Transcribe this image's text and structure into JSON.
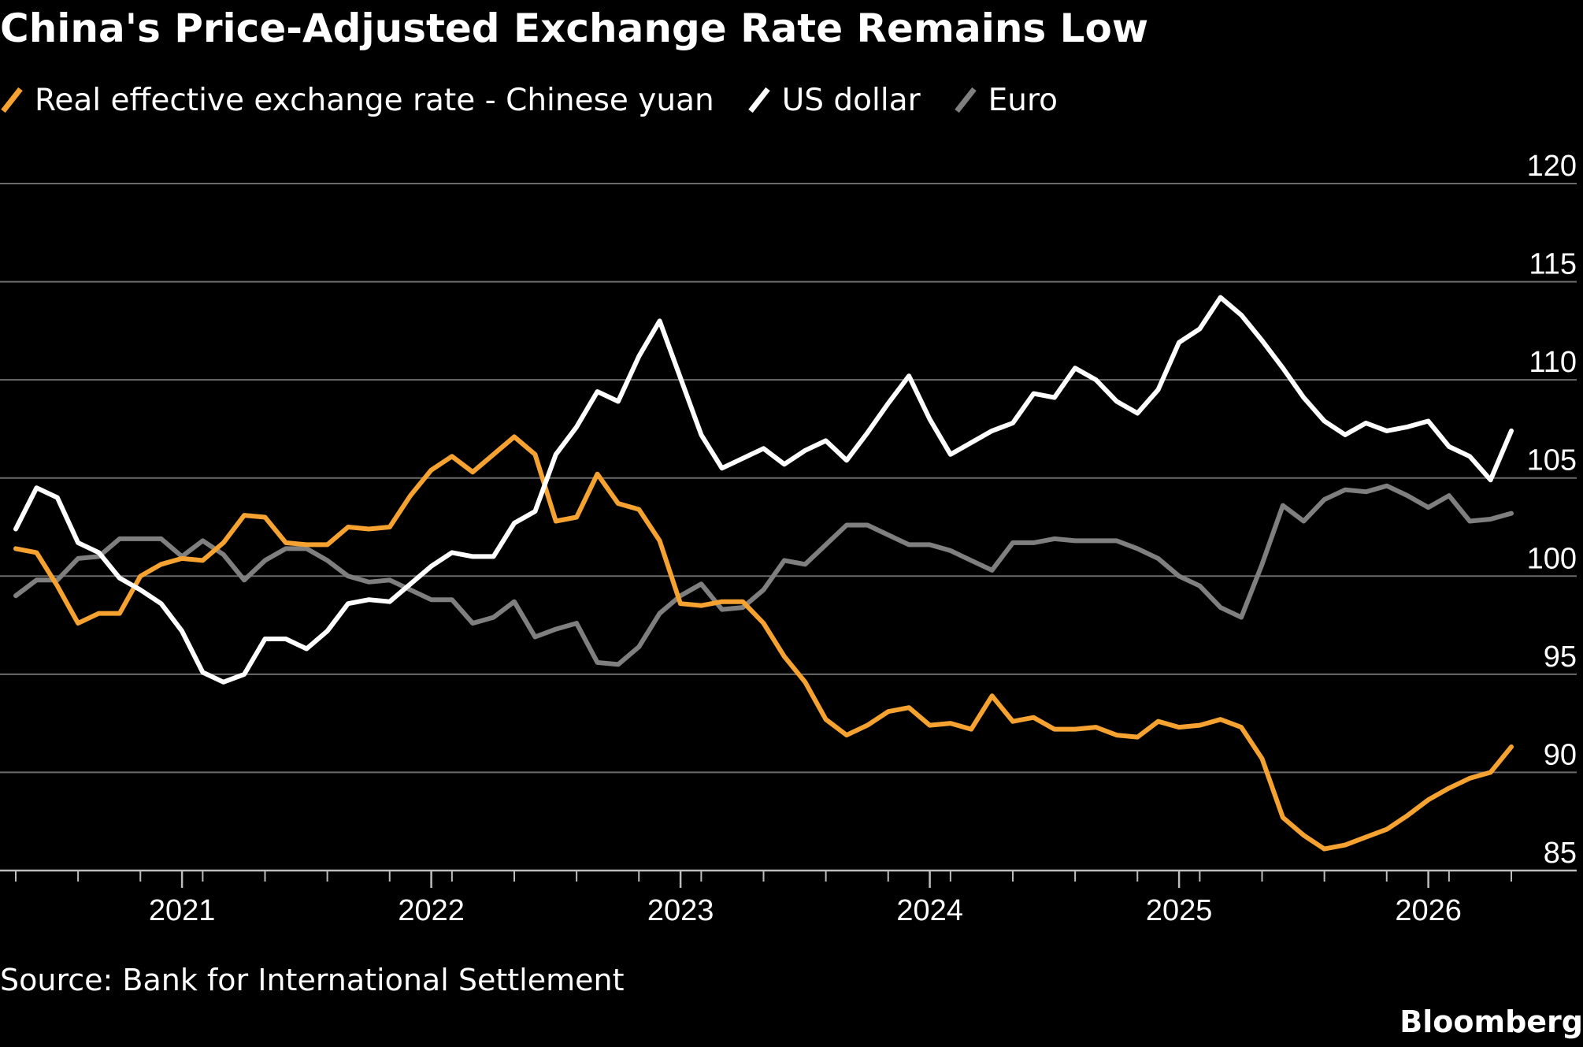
{
  "chart_data": {
    "type": "line",
    "title": "China's Price-Adjusted Exchange Rate Remains Low",
    "source": "Source: Bank for International Settlement",
    "brand": "Bloomberg",
    "x_start": 2020.333,
    "x_step_months": 1,
    "x_ticks": [
      2021,
      2022,
      2023,
      2024,
      2025,
      2026
    ],
    "x_tick_labels": [
      "2021",
      "2022",
      "2023",
      "2024",
      "2025",
      "2026"
    ],
    "xlim": [
      2020.333,
      2026.333
    ],
    "y_ticks": [
      85,
      90,
      95,
      100,
      105,
      110,
      115,
      120
    ],
    "y_tick_labels": [
      "85",
      "90",
      "95",
      "100",
      "105",
      "110",
      "115",
      "120"
    ],
    "ylim": [
      85,
      120
    ],
    "grid": true,
    "legend_position": "top-left",
    "series": [
      {
        "name": "Real effective exchange rate - Chinese yuan",
        "color": "#f5a230",
        "values": [
          101.4,
          101.2,
          99.5,
          97.6,
          98.1,
          98.1,
          100,
          100.6,
          100.9,
          100.8,
          101.7,
          103.1,
          103,
          101.7,
          101.6,
          101.6,
          102.5,
          102.4,
          102.5,
          104.1,
          105.4,
          106.1,
          105.3,
          106.2,
          107.1,
          106.2,
          102.8,
          103,
          105.2,
          103.7,
          103.4,
          101.8,
          98.6,
          98.5,
          98.7,
          98.7,
          97.6,
          95.9,
          94.6,
          92.7,
          91.9,
          92.4,
          93.1,
          93.3,
          92.4,
          92.5,
          92.2,
          93.9,
          92.6,
          92.8,
          92.2,
          92.2,
          92.3,
          91.9,
          91.8,
          92.6,
          92.3,
          92.4,
          92.7,
          92.3,
          90.7,
          87.7,
          86.8,
          86.1,
          86.3,
          86.7,
          87.1,
          87.8,
          88.6,
          89.2,
          89.7,
          90.0,
          91.3
        ]
      },
      {
        "name": "US dollar",
        "color": "#ffffff",
        "values": [
          102.4,
          104.5,
          104.0,
          101.7,
          101.2,
          99.9,
          99.3,
          98.6,
          97.2,
          95.1,
          94.6,
          95.0,
          96.8,
          96.8,
          96.3,
          97.2,
          98.6,
          98.8,
          98.7,
          99.6,
          100.5,
          101.2,
          101.0,
          101.0,
          102.7,
          103.3,
          106.2,
          107.6,
          109.4,
          108.9,
          111.2,
          113.0,
          110.1,
          107.2,
          105.5,
          106.0,
          106.5,
          105.7,
          106.4,
          106.9,
          105.9,
          107.3,
          108.8,
          110.2,
          108.0,
          106.2,
          106.8,
          107.4,
          107.8,
          109.3,
          109.1,
          110.6,
          110.0,
          108.9,
          108.3,
          109.5,
          111.9,
          112.6,
          114.2,
          113.3,
          112.0,
          110.6,
          109.1,
          107.9,
          107.2,
          107.8,
          107.4,
          107.6,
          107.9,
          106.6,
          106.1,
          104.9,
          107.4
        ]
      },
      {
        "name": "Euro",
        "color": "#7f7f7f",
        "values": [
          99.0,
          99.8,
          99.8,
          100.9,
          101.0,
          101.9,
          101.9,
          101.9,
          101.0,
          101.8,
          101.1,
          99.8,
          100.8,
          101.4,
          101.4,
          100.8,
          100.0,
          99.7,
          99.8,
          99.3,
          98.8,
          98.8,
          97.6,
          97.9,
          98.7,
          96.9,
          97.3,
          97.6,
          95.6,
          95.5,
          96.4,
          98.1,
          99.0,
          99.6,
          98.3,
          98.4,
          99.3,
          100.8,
          100.6,
          101.6,
          102.6,
          102.6,
          102.1,
          101.6,
          101.6,
          101.3,
          100.8,
          100.3,
          101.7,
          101.7,
          101.9,
          101.8,
          101.8,
          101.8,
          101.4,
          100.9,
          100.0,
          99.5,
          98.4,
          97.9,
          100.6,
          103.6,
          102.8,
          103.9,
          104.4,
          104.3,
          104.6,
          104.1,
          103.5,
          104.1,
          102.8,
          102.9,
          103.2
        ]
      }
    ]
  }
}
